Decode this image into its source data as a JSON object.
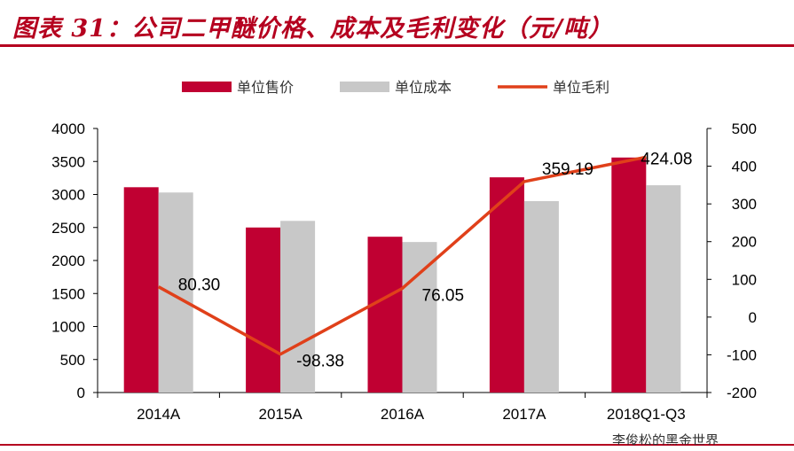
{
  "header": {
    "title": "图表 31：公司二甲醚价格、成本及毛利变化（元/吨）"
  },
  "watermark": "李俊松的黑金世界",
  "chart_data": {
    "type": "bar",
    "categories": [
      "2014A",
      "2015A",
      "2016A",
      "2017A",
      "2018Q1-Q3"
    ],
    "series": [
      {
        "name": "单位售价",
        "type": "bar",
        "axis": "left",
        "color": "#c00032",
        "values": [
          3110,
          2500,
          2360,
          3260,
          3560
        ]
      },
      {
        "name": "单位成本",
        "type": "bar",
        "axis": "left",
        "color": "#c8c8c8",
        "values": [
          3030,
          2600,
          2280,
          2900,
          3140
        ]
      },
      {
        "name": "单位毛利",
        "type": "line",
        "axis": "right",
        "color": "#e0401a",
        "values": [
          80.3,
          -98.38,
          76.05,
          359.19,
          424.08
        ],
        "labels": [
          "80.30",
          "-98.38",
          "76.05",
          "359.19",
          "424.08"
        ]
      }
    ],
    "y_left": {
      "lim": [
        0,
        4000
      ],
      "ticks": [
        0,
        500,
        1000,
        1500,
        2000,
        2500,
        3000,
        3500,
        4000
      ]
    },
    "y_right": {
      "lim": [
        -200,
        500
      ],
      "ticks": [
        -200,
        -100,
        0,
        100,
        200,
        300,
        400,
        500
      ]
    },
    "legend": {
      "position": "top"
    },
    "grid": false
  }
}
